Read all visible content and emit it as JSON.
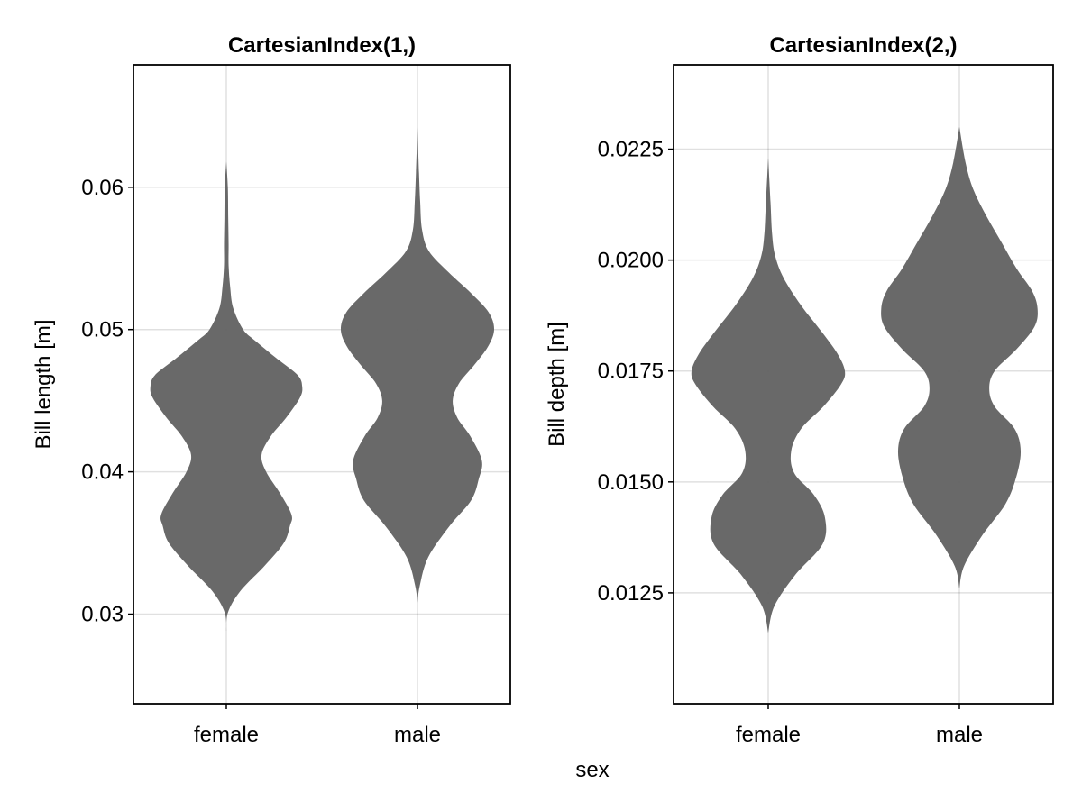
{
  "figure": {
    "shared_xlabel": "sex"
  },
  "chart_data": [
    {
      "type": "violin",
      "title": "CartesianIndex(1,)",
      "xlabel": "",
      "ylabel": "Bill length [m]",
      "categories": [
        "female",
        "male"
      ],
      "ylim": [
        0.0237,
        0.0686
      ],
      "yticks": [
        0.03,
        0.04,
        0.05,
        0.06
      ],
      "ytick_labels": [
        "0.03",
        "0.04",
        "0.05",
        "0.06"
      ],
      "grid": true,
      "fill_color": "#666666",
      "violins": [
        {
          "category": "female",
          "y": [
            0.0288,
            0.0301,
            0.0316,
            0.0334,
            0.035,
            0.0362,
            0.037,
            0.0385,
            0.04,
            0.0412,
            0.0425,
            0.0438,
            0.0452,
            0.046,
            0.0468,
            0.048,
            0.0492,
            0.05,
            0.0515,
            0.053,
            0.0545,
            0.056,
            0.0578,
            0.06,
            0.0618
          ],
          "half_width": [
            0.0,
            0.02,
            0.18,
            0.5,
            0.75,
            0.83,
            0.85,
            0.7,
            0.52,
            0.46,
            0.58,
            0.78,
            0.96,
            0.99,
            0.93,
            0.65,
            0.38,
            0.22,
            0.09,
            0.05,
            0.03,
            0.03,
            0.025,
            0.02,
            0.0
          ]
        },
        {
          "category": "male",
          "y": [
            0.0308,
            0.032,
            0.034,
            0.0362,
            0.038,
            0.0395,
            0.0408,
            0.0425,
            0.0438,
            0.045,
            0.0462,
            0.0475,
            0.0488,
            0.05,
            0.0512,
            0.0525,
            0.054,
            0.0555,
            0.057,
            0.059,
            0.061,
            0.0642
          ],
          "half_width": [
            0.0,
            0.03,
            0.14,
            0.42,
            0.7,
            0.8,
            0.84,
            0.69,
            0.52,
            0.46,
            0.54,
            0.74,
            0.92,
            1.0,
            0.93,
            0.71,
            0.41,
            0.15,
            0.06,
            0.035,
            0.02,
            0.0
          ]
        }
      ]
    },
    {
      "type": "violin",
      "title": "CartesianIndex(2,)",
      "xlabel": "",
      "ylabel": "Bill depth [m]",
      "categories": [
        "female",
        "male"
      ],
      "ylim": [
        0.01,
        0.0244
      ],
      "yticks": [
        0.0125,
        0.015,
        0.0175,
        0.02,
        0.0225
      ],
      "ytick_labels": [
        "0.0125",
        "0.0150",
        "0.0175",
        "0.0200",
        "0.0225"
      ],
      "grid": true,
      "fill_color": "#666666",
      "violins": [
        {
          "category": "female",
          "y": [
            0.0116,
            0.0122,
            0.0129,
            0.0136,
            0.0142,
            0.0147,
            0.0152,
            0.0157,
            0.0162,
            0.0167,
            0.0172,
            0.0175,
            0.0179,
            0.0184,
            0.019,
            0.0196,
            0.0201,
            0.0206,
            0.0213,
            0.0223
          ],
          "half_width": [
            0.0,
            0.08,
            0.35,
            0.71,
            0.74,
            0.6,
            0.34,
            0.3,
            0.43,
            0.72,
            0.95,
            1.0,
            0.9,
            0.69,
            0.42,
            0.2,
            0.09,
            0.05,
            0.03,
            0.0
          ]
        },
        {
          "category": "male",
          "y": [
            0.0126,
            0.0131,
            0.0138,
            0.0145,
            0.0151,
            0.0157,
            0.0162,
            0.0167,
            0.0171,
            0.0175,
            0.018,
            0.0185,
            0.0189,
            0.0193,
            0.0198,
            0.0204,
            0.021,
            0.0216,
            0.0222,
            0.023
          ],
          "half_width": [
            0.0,
            0.06,
            0.3,
            0.6,
            0.74,
            0.8,
            0.72,
            0.46,
            0.39,
            0.46,
            0.75,
            0.98,
            1.02,
            0.95,
            0.75,
            0.55,
            0.35,
            0.18,
            0.08,
            0.0
          ]
        }
      ]
    }
  ]
}
